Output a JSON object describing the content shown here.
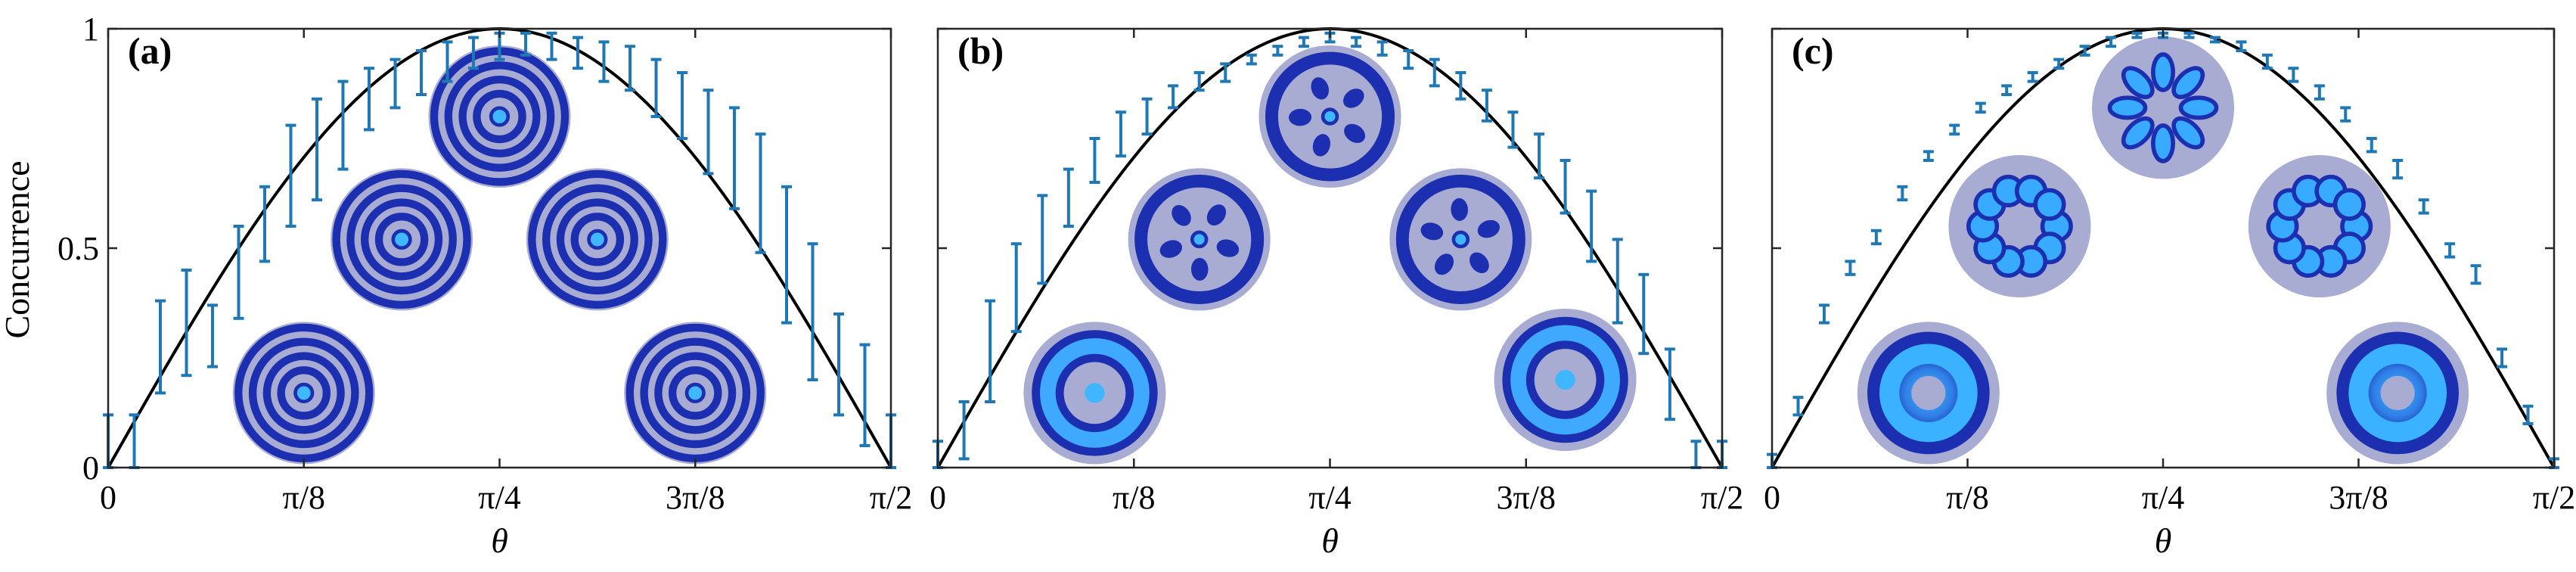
{
  "figure": {
    "ylabel": "Concurrence"
  },
  "colors": {
    "errorbar": "#1f77b4",
    "theory": "#000000",
    "beam_dark": "#1c2fb0",
    "beam_bright": "#36a6ff",
    "beam_bg": "#a9acd2"
  },
  "chart_data": [
    {
      "type": "scatter",
      "panel_label": "(a)",
      "xlabel": "θ",
      "ylabel": "Concurrence",
      "xlim": [
        0,
        1.5708
      ],
      "ylim": [
        0,
        1
      ],
      "x_tick_labels": [
        "0",
        "π/8",
        "π/4",
        "3π/8",
        "π/2"
      ],
      "y_tick_labels": [
        "0",
        "0.5",
        "1"
      ],
      "grid": false,
      "theory_curve": "sin(2θ)",
      "errorbars": [
        {
          "x": 0.0,
          "low": 0.0,
          "high": 0.12
        },
        {
          "x": 0.0524,
          "low": 0.0,
          "high": 0.12
        },
        {
          "x": 0.1047,
          "low": 0.17,
          "high": 0.38
        },
        {
          "x": 0.1571,
          "low": 0.21,
          "high": 0.45
        },
        {
          "x": 0.2094,
          "low": 0.23,
          "high": 0.37
        },
        {
          "x": 0.2618,
          "low": 0.34,
          "high": 0.55
        },
        {
          "x": 0.3142,
          "low": 0.47,
          "high": 0.64
        },
        {
          "x": 0.3665,
          "low": 0.55,
          "high": 0.78
        },
        {
          "x": 0.4189,
          "low": 0.61,
          "high": 0.84
        },
        {
          "x": 0.4712,
          "low": 0.68,
          "high": 0.88
        },
        {
          "x": 0.5236,
          "low": 0.77,
          "high": 0.91
        },
        {
          "x": 0.576,
          "low": 0.82,
          "high": 0.93
        },
        {
          "x": 0.6283,
          "low": 0.85,
          "high": 0.95
        },
        {
          "x": 0.6807,
          "low": 0.88,
          "high": 0.97
        },
        {
          "x": 0.733,
          "low": 0.91,
          "high": 0.98
        },
        {
          "x": 0.7854,
          "low": 0.93,
          "high": 0.99
        },
        {
          "x": 0.8378,
          "low": 0.94,
          "high": 0.99
        },
        {
          "x": 0.8901,
          "low": 0.93,
          "high": 0.99
        },
        {
          "x": 0.9425,
          "low": 0.91,
          "high": 0.98
        },
        {
          "x": 0.9948,
          "low": 0.88,
          "high": 0.97
        },
        {
          "x": 1.0472,
          "low": 0.86,
          "high": 0.96
        },
        {
          "x": 1.0996,
          "low": 0.8,
          "high": 0.93
        },
        {
          "x": 1.1519,
          "low": 0.75,
          "high": 0.9
        },
        {
          "x": 1.2043,
          "low": 0.67,
          "high": 0.86
        },
        {
          "x": 1.2566,
          "low": 0.59,
          "high": 0.82
        },
        {
          "x": 1.309,
          "low": 0.49,
          "high": 0.76
        },
        {
          "x": 1.3614,
          "low": 0.33,
          "high": 0.64
        },
        {
          "x": 1.4137,
          "low": 0.2,
          "high": 0.51
        },
        {
          "x": 1.4661,
          "low": 0.12,
          "high": 0.35
        },
        {
          "x": 1.5184,
          "low": 0.05,
          "high": 0.28
        },
        {
          "x": 1.5708,
          "low": 0.0,
          "high": 0.12
        }
      ],
      "insets": [
        {
          "theta": 0.3927,
          "level": 0.17,
          "pattern": "rings"
        },
        {
          "theta": 0.589,
          "level": 0.52,
          "pattern": "rings"
        },
        {
          "theta": 0.7854,
          "level": 0.8,
          "pattern": "rings"
        },
        {
          "theta": 0.9817,
          "level": 0.52,
          "pattern": "rings"
        },
        {
          "theta": 1.1781,
          "level": 0.17,
          "pattern": "rings"
        }
      ]
    },
    {
      "type": "scatter",
      "panel_label": "(b)",
      "xlabel": "θ",
      "ylabel": "",
      "xlim": [
        0,
        1.5708
      ],
      "ylim": [
        0,
        1
      ],
      "x_tick_labels": [
        "0",
        "π/8",
        "π/4",
        "3π/8",
        "π/2"
      ],
      "y_tick_labels": [],
      "grid": false,
      "theory_curve": "sin(2θ)",
      "errorbars": [
        {
          "x": 0.0,
          "low": 0.0,
          "high": 0.06
        },
        {
          "x": 0.0524,
          "low": 0.02,
          "high": 0.15
        },
        {
          "x": 0.1047,
          "low": 0.15,
          "high": 0.38
        },
        {
          "x": 0.1571,
          "low": 0.31,
          "high": 0.51
        },
        {
          "x": 0.2094,
          "low": 0.42,
          "high": 0.62
        },
        {
          "x": 0.2618,
          "low": 0.55,
          "high": 0.68
        },
        {
          "x": 0.3142,
          "low": 0.65,
          "high": 0.75
        },
        {
          "x": 0.3665,
          "low": 0.71,
          "high": 0.81
        },
        {
          "x": 0.4189,
          "low": 0.76,
          "high": 0.84
        },
        {
          "x": 0.4712,
          "low": 0.82,
          "high": 0.87
        },
        {
          "x": 0.5236,
          "low": 0.86,
          "high": 0.9
        },
        {
          "x": 0.576,
          "low": 0.88,
          "high": 0.92
        },
        {
          "x": 0.6283,
          "low": 0.92,
          "high": 0.94
        },
        {
          "x": 0.6807,
          "low": 0.94,
          "high": 0.96
        },
        {
          "x": 0.733,
          "low": 0.96,
          "high": 0.98
        },
        {
          "x": 0.7854,
          "low": 0.97,
          "high": 0.99
        },
        {
          "x": 0.8378,
          "low": 0.96,
          "high": 0.98
        },
        {
          "x": 0.8901,
          "low": 0.94,
          "high": 0.97
        },
        {
          "x": 0.9425,
          "low": 0.91,
          "high": 0.95
        },
        {
          "x": 0.9948,
          "low": 0.87,
          "high": 0.93
        },
        {
          "x": 1.0472,
          "low": 0.84,
          "high": 0.9
        },
        {
          "x": 1.0996,
          "low": 0.79,
          "high": 0.86
        },
        {
          "x": 1.1519,
          "low": 0.73,
          "high": 0.81
        },
        {
          "x": 1.2043,
          "low": 0.66,
          "high": 0.76
        },
        {
          "x": 1.2566,
          "low": 0.58,
          "high": 0.7
        },
        {
          "x": 1.309,
          "low": 0.47,
          "high": 0.63
        },
        {
          "x": 1.3614,
          "low": 0.33,
          "high": 0.52
        },
        {
          "x": 1.4137,
          "low": 0.26,
          "high": 0.44
        },
        {
          "x": 1.4661,
          "low": 0.11,
          "high": 0.27
        },
        {
          "x": 1.5184,
          "low": 0.0,
          "high": 0.06
        },
        {
          "x": 1.5708,
          "low": 0.0,
          "high": 0.06
        }
      ],
      "insets": [
        {
          "theta": 0.3142,
          "level": 0.17,
          "pattern": "ring"
        },
        {
          "theta": 0.5236,
          "level": 0.52,
          "pattern": "petals"
        },
        {
          "theta": 0.7854,
          "level": 0.8,
          "pattern": "petals"
        },
        {
          "theta": 1.0472,
          "level": 0.52,
          "pattern": "petals"
        },
        {
          "theta": 1.2566,
          "level": 0.2,
          "pattern": "ring"
        }
      ]
    },
    {
      "type": "scatter",
      "panel_label": "(c)",
      "xlabel": "θ",
      "ylabel": "",
      "xlim": [
        0,
        1.5708
      ],
      "ylim": [
        0,
        1
      ],
      "x_tick_labels": [
        "0",
        "π/8",
        "π/4",
        "3π/8",
        "π/2"
      ],
      "y_tick_labels": [],
      "grid": false,
      "theory_curve": "sin(2θ)",
      "errorbars": [
        {
          "x": 0.0,
          "low": 0.0,
          "high": 0.03
        },
        {
          "x": 0.0524,
          "low": 0.12,
          "high": 0.16
        },
        {
          "x": 0.1047,
          "low": 0.33,
          "high": 0.37
        },
        {
          "x": 0.1571,
          "low": 0.44,
          "high": 0.47
        },
        {
          "x": 0.2094,
          "low": 0.51,
          "high": 0.54
        },
        {
          "x": 0.2618,
          "low": 0.61,
          "high": 0.64
        },
        {
          "x": 0.3142,
          "low": 0.7,
          "high": 0.72
        },
        {
          "x": 0.3665,
          "low": 0.76,
          "high": 0.78
        },
        {
          "x": 0.4189,
          "low": 0.81,
          "high": 0.83
        },
        {
          "x": 0.4712,
          "low": 0.85,
          "high": 0.87
        },
        {
          "x": 0.5236,
          "low": 0.88,
          "high": 0.9
        },
        {
          "x": 0.576,
          "low": 0.91,
          "high": 0.93
        },
        {
          "x": 0.6283,
          "low": 0.94,
          "high": 0.96
        },
        {
          "x": 0.6807,
          "low": 0.96,
          "high": 0.98
        },
        {
          "x": 0.733,
          "low": 0.98,
          "high": 0.99
        },
        {
          "x": 0.7854,
          "low": 0.98,
          "high": 0.99
        },
        {
          "x": 0.8378,
          "low": 0.98,
          "high": 0.99
        },
        {
          "x": 0.8901,
          "low": 0.97,
          "high": 0.98
        },
        {
          "x": 0.9425,
          "low": 0.95,
          "high": 0.97
        },
        {
          "x": 0.9948,
          "low": 0.91,
          "high": 0.94
        },
        {
          "x": 1.0472,
          "low": 0.88,
          "high": 0.91
        },
        {
          "x": 1.0996,
          "low": 0.84,
          "high": 0.87
        },
        {
          "x": 1.1519,
          "low": 0.79,
          "high": 0.82
        },
        {
          "x": 1.2043,
          "low": 0.72,
          "high": 0.75
        },
        {
          "x": 1.2566,
          "low": 0.66,
          "high": 0.7
        },
        {
          "x": 1.309,
          "low": 0.58,
          "high": 0.61
        },
        {
          "x": 1.3614,
          "low": 0.48,
          "high": 0.51
        },
        {
          "x": 1.4137,
          "low": 0.42,
          "high": 0.46
        },
        {
          "x": 1.4661,
          "low": 0.23,
          "high": 0.27
        },
        {
          "x": 1.5184,
          "low": 0.1,
          "high": 0.14
        },
        {
          "x": 1.5708,
          "low": 0.0,
          "high": 0.02
        }
      ],
      "insets": [
        {
          "theta": 0.3142,
          "level": 0.17,
          "pattern": "donut"
        },
        {
          "theta": 0.4974,
          "level": 0.55,
          "pattern": "beads"
        },
        {
          "theta": 0.7854,
          "level": 0.82,
          "pattern": "flower"
        },
        {
          "theta": 1.0996,
          "level": 0.55,
          "pattern": "beads"
        },
        {
          "theta": 1.2566,
          "level": 0.17,
          "pattern": "donut"
        }
      ]
    }
  ]
}
